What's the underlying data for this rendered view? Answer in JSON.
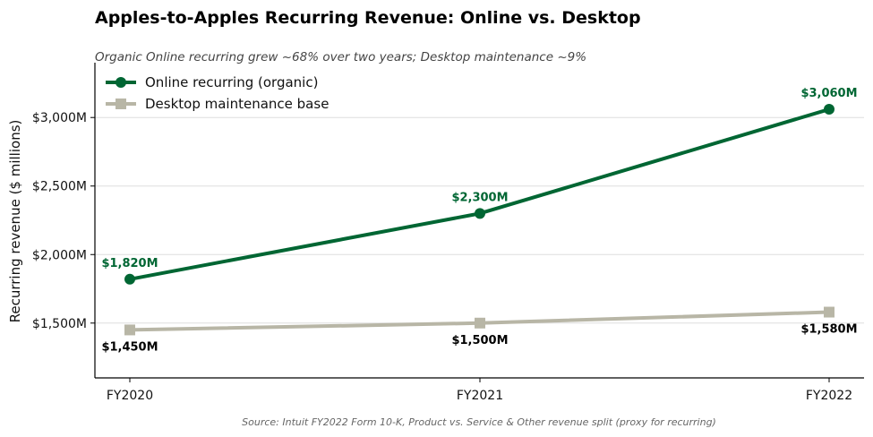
{
  "chart_data": {
    "type": "line",
    "title": "Apples-to-Apples Recurring Revenue: Online vs. Desktop",
    "subtitle": "Organic Online recurring grew ~68% over two years; Desktop maintenance ~9%",
    "source": "Source: Intuit FY2022 Form 10-K, Product vs. Service & Other revenue split (proxy for recurring)",
    "xlabel": "",
    "ylabel": "Recurring revenue ($ millions)",
    "categories": [
      "FY2020",
      "FY2021",
      "FY2022"
    ],
    "ylim": [
      1100,
      3400
    ],
    "yticks": [
      1500,
      2000,
      2500,
      3000
    ],
    "ytick_labels": [
      "$1,500M",
      "$2,000M",
      "$2,500M",
      "$3,000M"
    ],
    "grid": "horizontal",
    "legend_position": "top-left",
    "series": [
      {
        "name": "Online recurring (organic)",
        "values": [
          1820,
          2300,
          3060
        ],
        "labels": [
          "$1,820M",
          "$2,300M",
          "$3,060M"
        ],
        "color": "#006633",
        "label_color": "#006633",
        "marker": "circle",
        "label_position": "above"
      },
      {
        "name": "Desktop maintenance base",
        "values": [
          1450,
          1500,
          1580
        ],
        "labels": [
          "$1,450M",
          "$1,500M",
          "$1,580M"
        ],
        "color": "#b8b6a6",
        "label_color": "#000000",
        "marker": "square",
        "label_position": "below"
      }
    ]
  }
}
